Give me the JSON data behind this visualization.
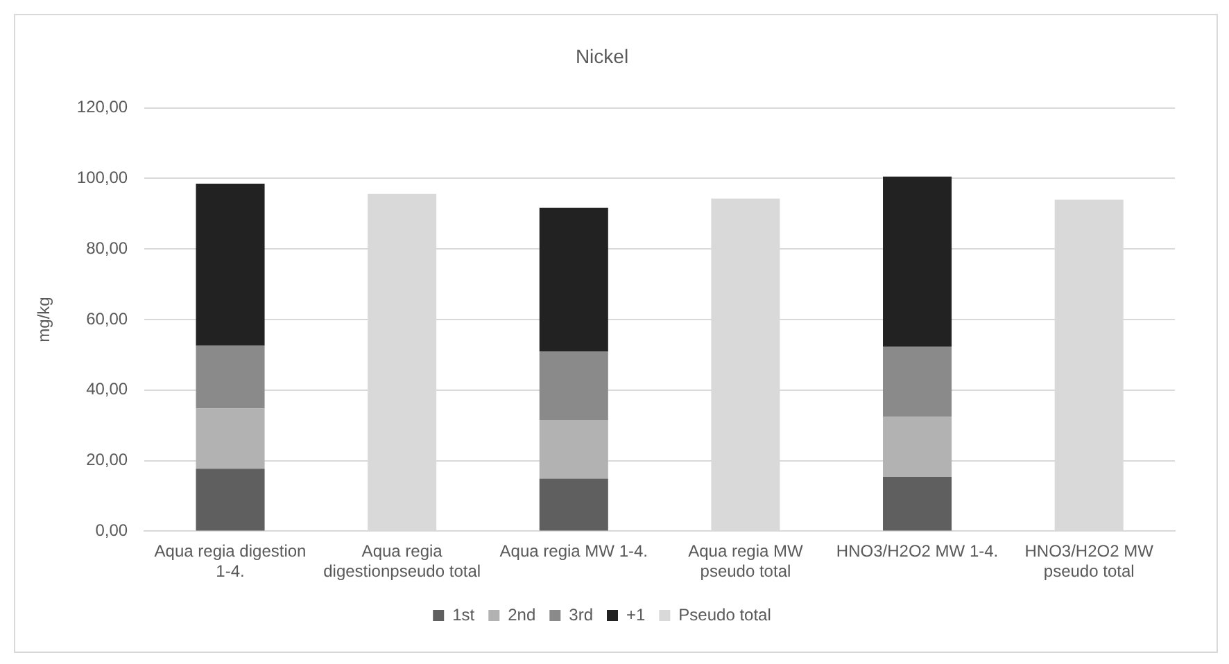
{
  "chart_data": {
    "type": "bar",
    "title": "Nickel",
    "ylabel": "mg/kg",
    "stacked": true,
    "grid": "y",
    "legend": "bottom",
    "categories": [
      "Aqua regia digestion 1-4.",
      "Aqua regia digestionpseudo total",
      "Aqua regia MW 1-4.",
      "Aqua regia MW pseudo total",
      "HNO3/H2O2 MW 1-4.",
      "HNO3/H2O2 MW pseudo total"
    ],
    "series": [
      {
        "name": "1st",
        "color": "#5f5f5f",
        "values": [
          17.7,
          null,
          14.9,
          null,
          15.4,
          null
        ]
      },
      {
        "name": "2nd",
        "color": "#b2b2b2",
        "values": [
          17.1,
          null,
          16.6,
          null,
          17.0,
          null
        ]
      },
      {
        "name": "3rd",
        "color": "#8a8a8a",
        "values": [
          17.8,
          null,
          19.4,
          null,
          19.9,
          null
        ]
      },
      {
        "name": "+1",
        "color": "#222222",
        "values": [
          45.9,
          null,
          40.8,
          null,
          48.2,
          null
        ]
      },
      {
        "name": "Pseudo total",
        "color": "#d9d9d9",
        "values": [
          null,
          95.6,
          null,
          94.3,
          null,
          94.0
        ]
      }
    ],
    "ylim": [
      0,
      120
    ],
    "yticks": [
      {
        "value": 0,
        "label": "0,00"
      },
      {
        "value": 20,
        "label": "20,00"
      },
      {
        "value": 40,
        "label": "40,00"
      },
      {
        "value": 60,
        "label": "60,00"
      },
      {
        "value": 80,
        "label": "80,00"
      },
      {
        "value": 100,
        "label": "100,00"
      },
      {
        "value": 120,
        "label": "120,00"
      }
    ]
  }
}
